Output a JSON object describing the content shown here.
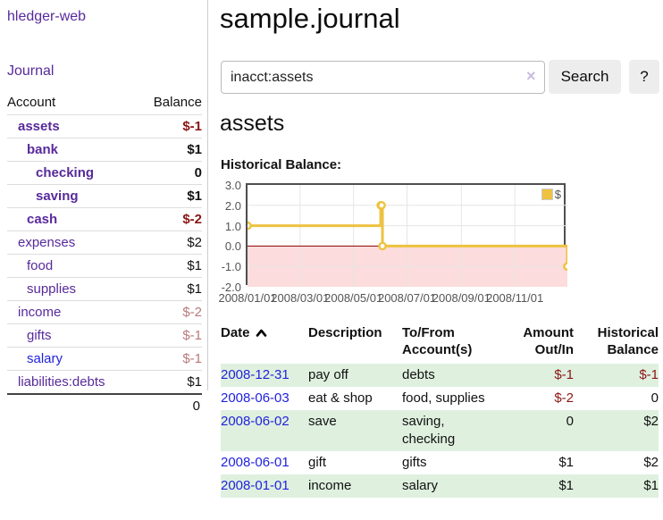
{
  "brand": "hledger-web",
  "nav": {
    "journal_label": "Journal"
  },
  "sidebar_table": {
    "account_header": "Account",
    "balance_header": "Balance",
    "rows": [
      {
        "account": "assets",
        "balance": "$-1",
        "depth": 1,
        "bold": true,
        "balance_color": "neg-strong",
        "link_color": "purple"
      },
      {
        "account": "bank",
        "balance": "$1",
        "depth": 2,
        "bold": true,
        "balance_color": "pos",
        "link_color": "purple"
      },
      {
        "account": "checking",
        "balance": "0",
        "depth": 3,
        "bold": true,
        "balance_color": "pos",
        "link_color": "purple"
      },
      {
        "account": "saving",
        "balance": "$1",
        "depth": 3,
        "bold": true,
        "balance_color": "pos",
        "link_color": "purple"
      },
      {
        "account": "cash",
        "balance": "$-2",
        "depth": 2,
        "bold": true,
        "balance_color": "neg-strong",
        "link_color": "purple"
      },
      {
        "account": "expenses",
        "balance": "$2",
        "depth": 1,
        "bold": false,
        "balance_color": "pos",
        "link_color": "purple"
      },
      {
        "account": "food",
        "balance": "$1",
        "depth": 2,
        "bold": false,
        "balance_color": "pos",
        "link_color": "purple"
      },
      {
        "account": "supplies",
        "balance": "$1",
        "depth": 2,
        "bold": false,
        "balance_color": "pos",
        "link_color": "purple"
      },
      {
        "account": "income",
        "balance": "$-2",
        "depth": 1,
        "bold": false,
        "balance_color": "neg-soft",
        "link_color": "purple"
      },
      {
        "account": "gifts",
        "balance": "$-1",
        "depth": 2,
        "bold": false,
        "balance_color": "neg-soft",
        "link_color": "purple"
      },
      {
        "account": "salary",
        "balance": "$-1",
        "depth": 2,
        "bold": false,
        "balance_color": "neg-soft",
        "link_color": "blue"
      },
      {
        "account": "liabilities:debts",
        "balance": "$1",
        "depth": 1,
        "bold": false,
        "balance_color": "pos",
        "link_color": "purple"
      }
    ],
    "total": "0"
  },
  "header": {
    "title": "sample.journal"
  },
  "search": {
    "value": "inacct:assets",
    "clear_icon": "×",
    "button_label": "Search",
    "help_label": "?"
  },
  "account_page": {
    "title": "assets",
    "chart_label": "Historical Balance:"
  },
  "chart_data": {
    "type": "line",
    "title": "Historical Balance",
    "series": [
      {
        "name": "$",
        "color": "#edc240",
        "step": true,
        "points": [
          {
            "x": "2008-01-01",
            "y": 1
          },
          {
            "x": "2008-06-01",
            "y": 2
          },
          {
            "x": "2008-06-02",
            "y": 2
          },
          {
            "x": "2008-06-03",
            "y": 0
          },
          {
            "x": "2008-12-31",
            "y": -1
          }
        ]
      }
    ],
    "x_ticks": [
      "2008/01/01",
      "2008/03/01",
      "2008/05/01",
      "2008/07/01",
      "2008/09/01",
      "2008/11/01"
    ],
    "y_ticks": [
      "3.0",
      "2.0",
      "1.0",
      "0.0",
      "-1.0",
      "-2.0"
    ],
    "ylim": [
      -2,
      3
    ],
    "xlim": [
      "2008-01-01",
      "2008-12-31"
    ],
    "grid": true,
    "legend_position": "top-right",
    "negative_region_color": "#fcdcdc",
    "zero_line_color": "#8b0000",
    "gridline_color": "#e5e5e5"
  },
  "register": {
    "headers": {
      "date": "Date",
      "description": "Description",
      "accounts": "To/From Account(s)",
      "amount": "Amount Out/In",
      "balance": "Historical Balance"
    },
    "rows": [
      {
        "date": "2008-12-31",
        "description": "pay off",
        "accounts": "debts",
        "amount": "$-1",
        "amount_negative": true,
        "balance": "$-1",
        "balance_negative": true
      },
      {
        "date": "2008-06-03",
        "description": "eat & shop",
        "accounts": "food, supplies",
        "amount": "$-2",
        "amount_negative": true,
        "balance": "0",
        "balance_negative": false
      },
      {
        "date": "2008-06-02",
        "description": "save",
        "accounts": "saving, checking",
        "amount": "0",
        "amount_negative": false,
        "balance": "$2",
        "balance_negative": false
      },
      {
        "date": "2008-06-01",
        "description": "gift",
        "accounts": "gifts",
        "amount": "$1",
        "amount_negative": false,
        "balance": "$2",
        "balance_negative": false
      },
      {
        "date": "2008-01-01",
        "description": "income",
        "accounts": "salary",
        "amount": "$1",
        "amount_negative": false,
        "balance": "$1",
        "balance_negative": false
      }
    ]
  },
  "colors": {
    "accent_purple": "#582a9b",
    "link_blue": "#2222dd",
    "negative_strong": "#8b1515",
    "negative_soft": "#b87a7a",
    "row_green": "#dff0df",
    "axis_text": "#545454",
    "series_yellow": "#edc240"
  }
}
